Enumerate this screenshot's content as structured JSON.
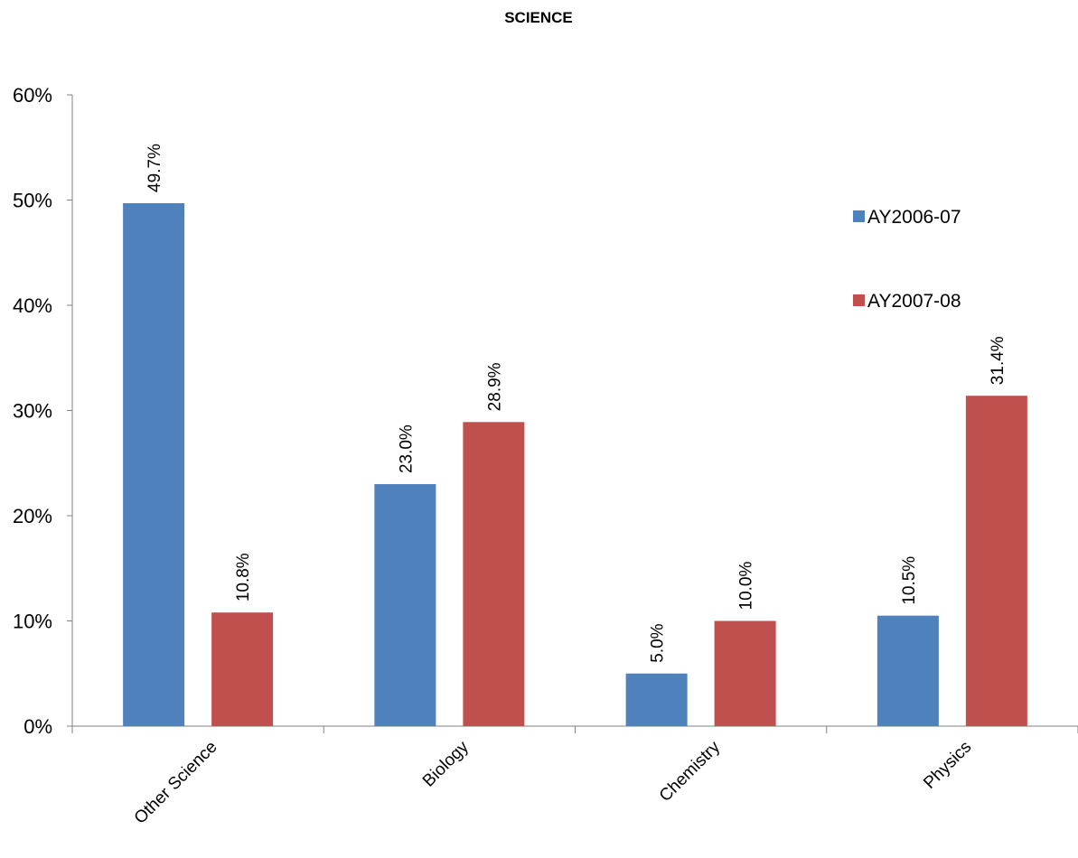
{
  "chart_data": {
    "type": "bar",
    "title": "SCIENCE",
    "xlabel": "",
    "ylabel": "",
    "categories": [
      "Other Science",
      "Biology",
      "Chemistry",
      "Physics"
    ],
    "series": [
      {
        "name": "AY2006-07",
        "color": "#4F81BD",
        "values": [
          49.7,
          23.0,
          5.0,
          10.5
        ]
      },
      {
        "name": "AY2007-08",
        "color": "#C0504D",
        "values": [
          10.8,
          28.9,
          10.0,
          31.4
        ]
      }
    ],
    "value_format": "percent_1dp",
    "ylim": [
      0,
      60
    ],
    "yticks": [
      0,
      10,
      20,
      30,
      40,
      50,
      60
    ],
    "ytick_labels": [
      "0%",
      "10%",
      "20%",
      "30%",
      "40%",
      "50%",
      "60%"
    ],
    "grid": false,
    "legend": "right"
  }
}
